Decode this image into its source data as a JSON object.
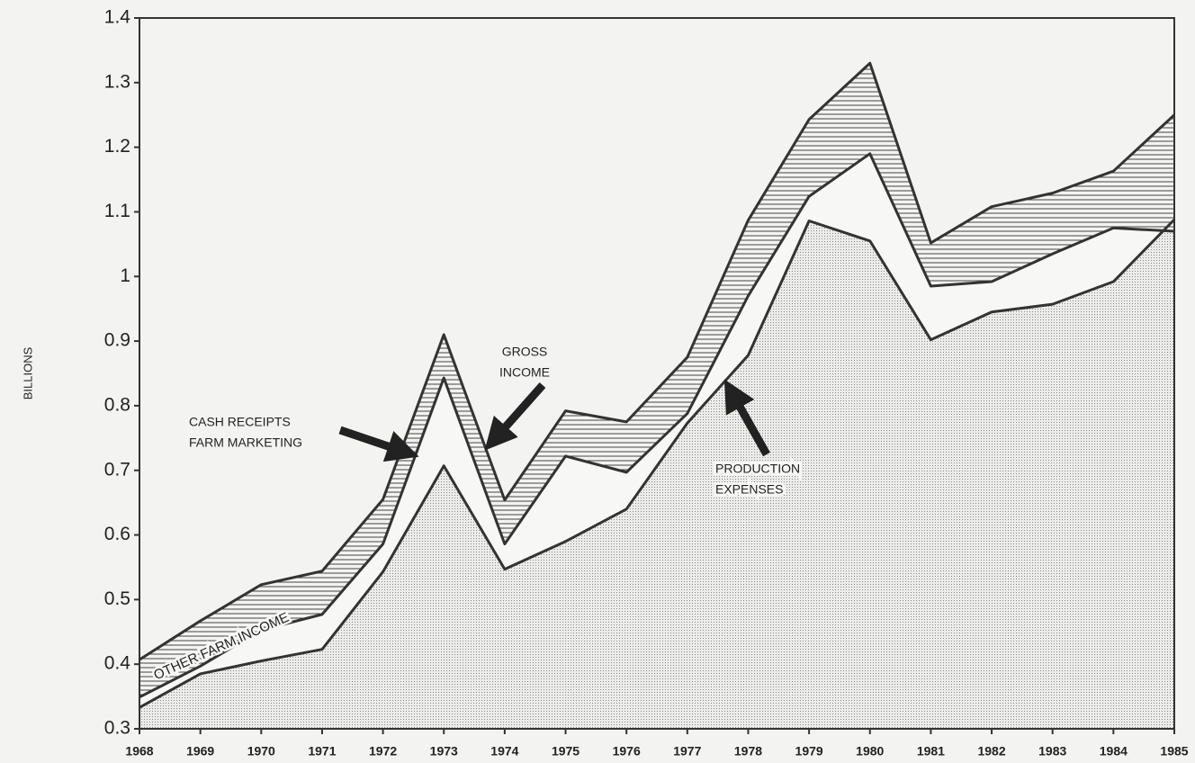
{
  "chart_data": {
    "type": "line",
    "ylabel": "BILLIONS",
    "x": [
      1968,
      1969,
      1970,
      1971,
      1972,
      1973,
      1974,
      1975,
      1976,
      1977,
      1978,
      1979,
      1980,
      1981,
      1982,
      1983,
      1984,
      1985
    ],
    "xlim": [
      1968,
      1985
    ],
    "xticks": [
      1968,
      1969,
      1970,
      1971,
      1972,
      1973,
      1974,
      1975,
      1976,
      1977,
      1978,
      1979,
      1980,
      1981,
      1982,
      1983,
      1984,
      1985
    ],
    "ylim": [
      0.3,
      1.4
    ],
    "yticks": [
      0.3,
      0.4,
      0.5,
      0.6,
      0.7,
      0.8,
      0.9,
      1,
      1.1,
      1.2,
      1.3,
      1.4
    ],
    "series": [
      {
        "name": "GROSS INCOME",
        "color": "#333333",
        "values": [
          0.407,
          0.467,
          0.523,
          0.544,
          0.655,
          0.91,
          0.654,
          0.792,
          0.775,
          0.875,
          1.087,
          1.243,
          1.33,
          1.052,
          1.108,
          1.129,
          1.163,
          1.25
        ]
      },
      {
        "name": "CASH RECEIPTS FARM MARKETING",
        "color": "#333333",
        "values": [
          0.349,
          0.397,
          0.453,
          0.477,
          0.586,
          0.843,
          0.586,
          0.722,
          0.697,
          0.788,
          0.97,
          1.124,
          1.19,
          0.985,
          0.992,
          1.035,
          1.075,
          1.07
        ]
      },
      {
        "name": "PRODUCTION EXPENSES",
        "color": "#333333",
        "values": [
          0.333,
          0.385,
          0.405,
          0.423,
          0.543,
          0.707,
          0.547,
          0.59,
          0.64,
          0.773,
          0.878,
          1.086,
          1.055,
          0.902,
          0.945,
          0.957,
          0.992,
          1.088
        ]
      }
    ],
    "annotations": [
      {
        "text": [
          "CASH RECEIPTS",
          "FARM MARKETING"
        ]
      },
      {
        "text": [
          "GROSS",
          "INCOME"
        ]
      },
      {
        "text": [
          "PRODUCTION",
          "EXPENSES"
        ]
      },
      {
        "text": [
          "OTHER FARM INCOME"
        ]
      }
    ]
  }
}
